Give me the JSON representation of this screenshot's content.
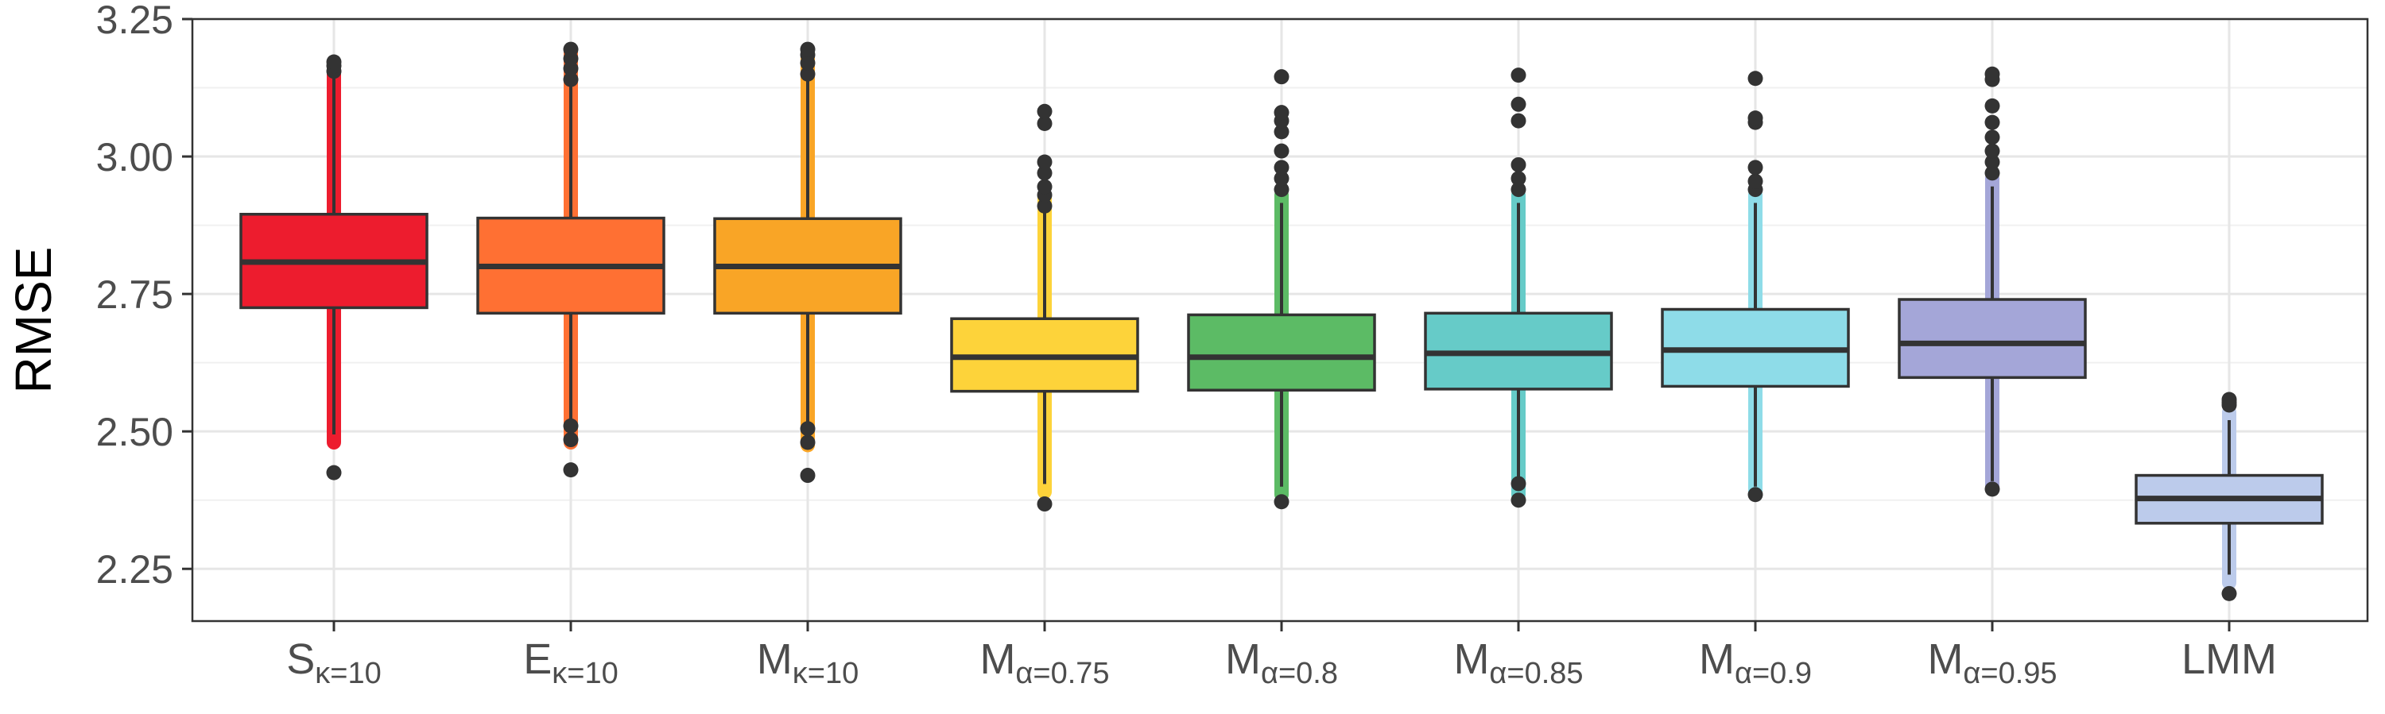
{
  "chart_data": {
    "type": "box",
    "ylabel": "RMSE",
    "xlabel": "",
    "ylim": [
      2.155,
      3.25
    ],
    "yticks": [
      2.25,
      2.5,
      2.75,
      3.0,
      3.25
    ],
    "ytick_labels": [
      "2.25",
      "2.50",
      "2.75",
      "3.00",
      "3.25"
    ],
    "grid": true,
    "categories": [
      {
        "base": "S",
        "sub": "κ=10"
      },
      {
        "base": "E",
        "sub": "κ=10"
      },
      {
        "base": "M",
        "sub": "κ=10"
      },
      {
        "base": "M",
        "sub": "α=0.75"
      },
      {
        "base": "M",
        "sub": "α=0.8"
      },
      {
        "base": "M",
        "sub": "α=0.85"
      },
      {
        "base": "M",
        "sub": "α=0.9"
      },
      {
        "base": "M",
        "sub": "α=0.95"
      },
      {
        "base": "LMM",
        "sub": ""
      }
    ],
    "boxes": [
      {
        "color": "#ED1C2E",
        "q1": 2.725,
        "median": 2.808,
        "q3": 2.895,
        "dense_low": 2.48,
        "dense_high": 3.17,
        "outliers": [
          2.425,
          3.155,
          3.165,
          3.172
        ]
      },
      {
        "color": "#FF7033",
        "q1": 2.715,
        "median": 2.8,
        "q3": 2.888,
        "dense_low": 2.48,
        "dense_high": 3.19,
        "outliers": [
          2.43,
          2.485,
          2.51,
          3.14,
          3.16,
          3.178,
          3.195
        ]
      },
      {
        "color": "#F9A526",
        "q1": 2.715,
        "median": 2.8,
        "q3": 2.887,
        "dense_low": 2.475,
        "dense_high": 3.19,
        "outliers": [
          2.42,
          2.48,
          2.505,
          3.15,
          3.17,
          3.185,
          3.195
        ]
      },
      {
        "color": "#FDD33A",
        "q1": 2.573,
        "median": 2.635,
        "q3": 2.705,
        "dense_low": 2.39,
        "dense_high": 2.93,
        "outliers": [
          2.368,
          2.91,
          2.93,
          2.945,
          2.97,
          2.99,
          3.06,
          3.082
        ]
      },
      {
        "color": "#5CBB65",
        "q1": 2.575,
        "median": 2.635,
        "q3": 2.712,
        "dense_low": 2.385,
        "dense_high": 2.93,
        "outliers": [
          2.372,
          2.94,
          2.96,
          2.98,
          3.01,
          3.045,
          3.065,
          3.08,
          3.145
        ]
      },
      {
        "color": "#66CBC8",
        "q1": 2.577,
        "median": 2.642,
        "q3": 2.715,
        "dense_low": 2.385,
        "dense_high": 2.93,
        "outliers": [
          2.375,
          2.405,
          2.94,
          2.96,
          2.985,
          3.065,
          3.095,
          3.148
        ]
      },
      {
        "color": "#8EDCE8",
        "q1": 2.582,
        "median": 2.648,
        "q3": 2.722,
        "dense_low": 2.385,
        "dense_high": 2.93,
        "outliers": [
          2.385,
          2.94,
          2.955,
          2.98,
          3.062,
          3.07,
          3.142
        ]
      },
      {
        "color": "#A4A6D8",
        "q1": 2.598,
        "median": 2.66,
        "q3": 2.74,
        "dense_low": 2.395,
        "dense_high": 2.96,
        "outliers": [
          2.395,
          2.97,
          2.99,
          3.01,
          3.035,
          3.062,
          3.092,
          3.14,
          3.15
        ]
      },
      {
        "color": "#BCCBEB",
        "q1": 2.333,
        "median": 2.378,
        "q3": 2.42,
        "dense_low": 2.225,
        "dense_high": 2.535,
        "outliers": [
          2.205,
          2.548,
          2.553,
          2.558
        ]
      }
    ]
  }
}
